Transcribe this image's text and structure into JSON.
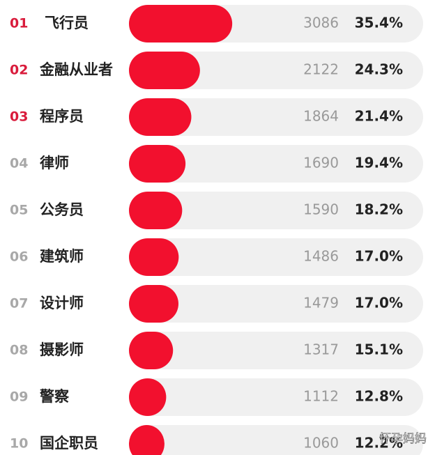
{
  "chart_data": {
    "type": "bar",
    "orientation": "horizontal",
    "ranks": [
      "01",
      "02",
      "03",
      "04",
      "05",
      "06",
      "07",
      "08",
      "09",
      "10"
    ],
    "categories": [
      "飞行员",
      "金融从业者",
      "程序员",
      "律师",
      "公务员",
      "建筑师",
      "设计师",
      "摄影师",
      "警察",
      "国企职员"
    ],
    "values": [
      3086,
      2122,
      1864,
      1690,
      1590,
      1486,
      1479,
      1317,
      1112,
      1060
    ],
    "shares": {
      "values": [
        35.4,
        24.3,
        21.4,
        19.4,
        18.2,
        17.0,
        17.0,
        15.1,
        12.8,
        12.2
      ],
      "value_labels": [
        "35.4%",
        "24.3%",
        "21.4%",
        "19.4%",
        "18.2%",
        "17.0%",
        "17.0%",
        "15.1%",
        "12.8%",
        "12.2%"
      ]
    },
    "color": "#f2102e",
    "track_color": "#f0f0f0",
    "highlight_top": 3,
    "highlight_color": "#d91c3c",
    "rank_color": "#a8a8a8",
    "watermark": "怀孕妈妈"
  }
}
